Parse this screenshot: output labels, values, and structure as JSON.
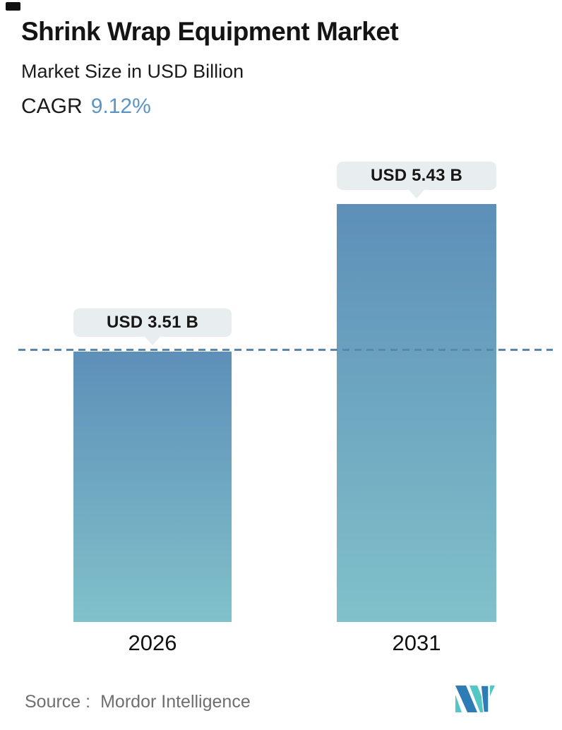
{
  "header": {
    "title": "Shrink Wrap Equipment Market",
    "subtitle": "Market Size in USD Billion",
    "cagr_label": "CAGR",
    "cagr_value": "9.12%",
    "cagr_value_color": "#5e94c4"
  },
  "chart_data": {
    "type": "bar",
    "title": "Shrink Wrap Equipment Market",
    "subtitle": "Market Size in USD Billion",
    "unit": "USD Billion",
    "categories": [
      "2026",
      "2031"
    ],
    "values": [
      3.51,
      5.43
    ],
    "value_labels": [
      "USD 3.51 B",
      "USD 5.43 B"
    ],
    "cagr": "9.12%",
    "ylim": [
      0,
      5.43
    ],
    "grid": false,
    "legend": false,
    "dashed_reference_value": 3.51,
    "bar_gradient_top": "#5d8fb8",
    "bar_gradient_bottom": "#80c1ca",
    "dashed_line_color": "#5b87ae",
    "label_bubble_bg": "#e8eef0"
  },
  "footer": {
    "source_label": "Source :",
    "source_name": "Mordor Intelligence",
    "logo_name": "mordor-intelligence-logo",
    "logo_blue": "#2e7cb5",
    "logo_teal": "#53c6c6"
  }
}
